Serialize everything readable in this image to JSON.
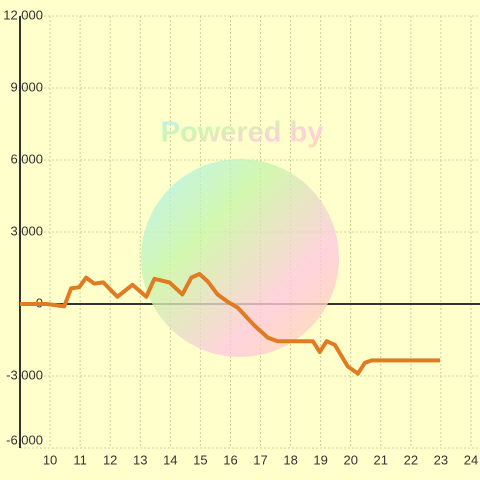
{
  "chart_data": {
    "type": "line",
    "watermark": "Powered by",
    "x": [
      9.0,
      9.9,
      10.47,
      10.7,
      10.97,
      11.2,
      11.47,
      11.77,
      12.24,
      12.74,
      13.2,
      13.47,
      13.97,
      14.4,
      14.7,
      14.97,
      15.24,
      15.57,
      15.9,
      16.24,
      16.8,
      17.24,
      17.57,
      18.74,
      18.97,
      19.2,
      19.47,
      19.9,
      20.24,
      20.47,
      20.7,
      22.97
    ],
    "series": [
      {
        "color": "#e07b24",
        "values": [
          0,
          0,
          -100,
          650,
          700,
          1100,
          850,
          900,
          300,
          800,
          300,
          1050,
          900,
          400,
          1100,
          1250,
          950,
          400,
          100,
          -150,
          -900,
          -1400,
          -1550,
          -1550,
          -2000,
          -1550,
          -1700,
          -2600,
          -2900,
          -2450,
          -2350,
          -2350
        ]
      }
    ],
    "xlim": [
      9,
      24.3
    ],
    "xticks": [
      10,
      11,
      12,
      13,
      14,
      15,
      16,
      17,
      18,
      19,
      20,
      21,
      22,
      23,
      24
    ],
    "ylim": [
      -6000,
      12000
    ],
    "yticks": [
      {
        "value": -6000,
        "label": "-6,000"
      },
      {
        "value": -3000,
        "label": "-3,000"
      },
      0,
      {
        "value": 3000,
        "label": "3,000"
      },
      {
        "value": 6000,
        "label": "6,000"
      },
      {
        "value": 9000,
        "label": "9,000"
      },
      {
        "value": 12000,
        "label": "12,000"
      }
    ],
    "grid": true
  }
}
